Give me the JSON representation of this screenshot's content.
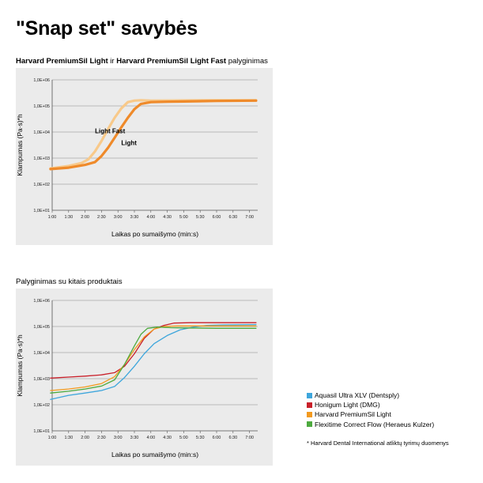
{
  "page": {
    "title": "\"Snap set\" savybės"
  },
  "chart1": {
    "subtitle_part1": "Harvard PremiumSil Light",
    "subtitle_part2": " ir ",
    "subtitle_part3": "Harvard PremiumSil Light Fast",
    "subtitle_part4": " palyginimas"
  },
  "chart2": {
    "subtitle": "Palyginimas su kitais produktais",
    "footnote": "* Harvard Dental International atliktų tyrimų duomenys"
  },
  "chart_data": [
    {
      "type": "line",
      "title": "Harvard PremiumSil Light ir Harvard PremiumSil Light Fast palyginimas",
      "xlabel": "Laikas po sumaišymo (min:s)",
      "ylabel": "Klampumas  (Pa·s)*h",
      "log_y": true,
      "ylim": [
        10,
        1000000
      ],
      "xlim": [
        1,
        7.25
      ],
      "grid": true,
      "x_ticks": [
        "1:00",
        "1:30",
        "2:00",
        "2:30",
        "3:00",
        "3:30",
        "4:00",
        "4:30",
        "5:00",
        "5:30",
        "6:00",
        "6:30",
        "7:00"
      ],
      "y_ticks": [
        "1,0E+01",
        "1,0E+02",
        "1,0E+03",
        "1,0E+04",
        "1,0E+05",
        "1,0E+06"
      ],
      "series": [
        {
          "name": "Light Fast",
          "color": "#f8c98a",
          "x": [
            0.95,
            1.5,
            1.9,
            2.1,
            2.3,
            2.5,
            2.7,
            2.9,
            3.1,
            3.3,
            3.5,
            3.7,
            4.0,
            5.0,
            6.0,
            7.2
          ],
          "y": [
            400,
            500,
            650,
            900,
            1800,
            4500,
            13000,
            35000,
            80000,
            140000,
            160000,
            165000,
            160000,
            162000,
            165000,
            165000
          ]
        },
        {
          "name": "Light",
          "color": "#ef8a2a",
          "x": [
            0.95,
            1.5,
            2.0,
            2.3,
            2.5,
            2.7,
            2.9,
            3.1,
            3.3,
            3.5,
            3.7,
            4.0,
            4.5,
            5.0,
            6.0,
            7.2
          ],
          "y": [
            380,
            430,
            550,
            700,
            1200,
            2500,
            6000,
            15000,
            35000,
            75000,
            120000,
            140000,
            145000,
            148000,
            155000,
            160000
          ]
        }
      ],
      "annotations": [
        {
          "text": "Light Fast",
          "x": 2.3,
          "y": 9000
        },
        {
          "text": "Light",
          "x": 3.1,
          "y": 3200
        }
      ]
    },
    {
      "type": "line",
      "title": "Palyginimas su kitais produktais",
      "xlabel": "Laikas po sumaišymo (min:s)",
      "ylabel": "Klampumas  (Pa·s)*h",
      "log_y": true,
      "ylim": [
        10,
        1000000
      ],
      "xlim": [
        1,
        7.25
      ],
      "grid": true,
      "legend_position": "right",
      "x_ticks": [
        "1:00",
        "1:30",
        "2:00",
        "2:30",
        "3:00",
        "3:30",
        "4:00",
        "4:30",
        "5:00",
        "5:30",
        "6:00",
        "6:30",
        "7:00"
      ],
      "y_ticks": [
        "1,0E+01",
        "1,0E+02",
        "1,0E+03",
        "1,0E+04",
        "1,0E+05",
        "1,0E+06"
      ],
      "series": [
        {
          "name": "Aquasil Ultra XLV (Dentsply)",
          "color": "#3ea6dc",
          "x": [
            0.95,
            1.5,
            2.0,
            2.5,
            2.9,
            3.2,
            3.5,
            3.8,
            4.1,
            4.5,
            4.9,
            5.3,
            5.7,
            6.2,
            7.2
          ],
          "y": [
            160,
            230,
            280,
            350,
            500,
            1100,
            3000,
            9000,
            22000,
            45000,
            75000,
            95000,
            110000,
            115000,
            118000
          ]
        },
        {
          "name": "Honigum Light (DMG)",
          "color": "#c9202a",
          "x": [
            0.95,
            1.5,
            2.0,
            2.5,
            2.9,
            3.2,
            3.5,
            3.8,
            4.1,
            4.4,
            4.7,
            5.2,
            5.8,
            6.5,
            7.2
          ],
          "y": [
            1050,
            1150,
            1250,
            1400,
            1700,
            3000,
            9000,
            35000,
            80000,
            110000,
            135000,
            140000,
            140000,
            140000,
            140000
          ]
        },
        {
          "name": "Harvard PremiumSil Light",
          "color": "#f39a1e",
          "x": [
            0.95,
            1.5,
            2.0,
            2.5,
            2.9,
            3.2,
            3.5,
            3.8,
            4.1,
            4.4,
            4.8,
            5.2,
            6.0,
            7.2
          ],
          "y": [
            350,
            400,
            480,
            650,
            1200,
            3500,
            13000,
            40000,
            80000,
            100000,
            105000,
            105000,
            105000,
            105000
          ]
        },
        {
          "name": "Flexitime Correct Flow (Heraeus Kulzer)",
          "color": "#4daa3f",
          "x": [
            0.95,
            1.5,
            2.0,
            2.5,
            2.9,
            3.2,
            3.5,
            3.7,
            3.9,
            4.2,
            4.6,
            5.0,
            6.0,
            7.2
          ],
          "y": [
            280,
            330,
            400,
            520,
            900,
            3500,
            18000,
            50000,
            85000,
            95000,
            90000,
            88000,
            85000,
            85000
          ]
        }
      ]
    }
  ]
}
